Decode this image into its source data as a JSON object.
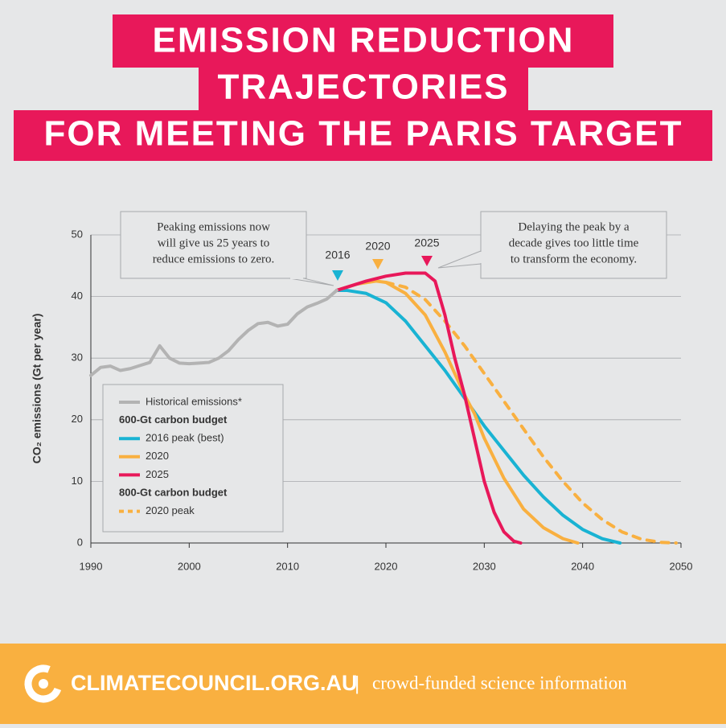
{
  "chart_data": {
    "type": "line",
    "title_lines": [
      "EMISSION REDUCTION",
      "TRAJECTORIES",
      "FOR MEETING THE PARIS TARGET"
    ],
    "ylabel": "CO₂ emissions (Gt per year)",
    "xlim": [
      1990,
      2050
    ],
    "xticks": [
      1990,
      2000,
      2010,
      2020,
      2030,
      2040,
      2050
    ],
    "ylim": [
      0,
      50
    ],
    "yticks": [
      0,
      10,
      20,
      30,
      40,
      50
    ],
    "grid": true,
    "legend_position": "lower left",
    "legend_groups": [
      "600-Gt carbon budget",
      "800-Gt carbon budget"
    ],
    "series": [
      {
        "name": "Historical emissions*",
        "color": "#b3b3b3",
        "dash": false,
        "x": [
          1990,
          1991,
          1992,
          1993,
          1994,
          1995,
          1996,
          1997,
          1998,
          1999,
          2000,
          2001,
          2002,
          2003,
          2004,
          2005,
          2006,
          2007,
          2008,
          2009,
          2010,
          2011,
          2012,
          2013,
          2014,
          2015
        ],
        "values": [
          27.2,
          28.5,
          28.7,
          28.0,
          28.3,
          28.8,
          29.3,
          32.0,
          30.0,
          29.2,
          29.1,
          29.2,
          29.3,
          30.0,
          31.2,
          33.0,
          34.5,
          35.6,
          35.8,
          35.2,
          35.5,
          37.2,
          38.3,
          38.9,
          39.6,
          41.0
        ]
      },
      {
        "name": "2016 peak (best)",
        "color": "#19b3d3",
        "dash": false,
        "x": [
          2015,
          2016,
          2018,
          2020,
          2022,
          2024,
          2026,
          2028,
          2030,
          2032,
          2034,
          2036,
          2038,
          2040,
          2042,
          2043.8
        ],
        "values": [
          41.0,
          41.0,
          40.5,
          39.0,
          36.0,
          32.0,
          28.0,
          23.5,
          19.0,
          15.0,
          11.0,
          7.5,
          4.5,
          2.2,
          0.7,
          0
        ]
      },
      {
        "name": "2020",
        "color": "#f9b040",
        "dash": false,
        "x": [
          2015,
          2017,
          2019,
          2020,
          2022,
          2024,
          2026,
          2028,
          2029,
          2030,
          2032,
          2034,
          2036,
          2038,
          2039.5
        ],
        "values": [
          41.0,
          42.0,
          42.5,
          42.3,
          40.5,
          37.0,
          31.0,
          24.0,
          21.0,
          17.0,
          10.5,
          5.5,
          2.5,
          0.7,
          0
        ]
      },
      {
        "name": "2025",
        "color": "#e8185a",
        "dash": false,
        "x": [
          2015,
          2018,
          2020,
          2022,
          2024,
          2025,
          2026,
          2027,
          2028,
          2029,
          2030,
          2031,
          2032,
          2033,
          2033.7
        ],
        "values": [
          41.0,
          42.5,
          43.3,
          43.8,
          43.8,
          42.5,
          37.0,
          30.0,
          24.0,
          17.0,
          10.0,
          5.0,
          1.8,
          0.3,
          0
        ]
      },
      {
        "name": "2020 peak",
        "color": "#f9b040",
        "dash": true,
        "x": [
          2020,
          2022,
          2024,
          2026,
          2028,
          2030,
          2032,
          2034,
          2036,
          2038,
          2040,
          2042,
          2044,
          2046,
          2048,
          2049.5
        ],
        "values": [
          42.3,
          41.5,
          39.5,
          36.0,
          32.0,
          27.5,
          23.0,
          18.5,
          14.0,
          10.0,
          6.5,
          3.8,
          1.8,
          0.6,
          0.1,
          0
        ]
      }
    ],
    "peak_markers": [
      {
        "label": "2016",
        "color": "#19b3d3"
      },
      {
        "label": "2020",
        "color": "#f9b040"
      },
      {
        "label": "2025",
        "color": "#e8185a"
      }
    ],
    "callouts": [
      [
        "Peaking emissions now",
        "will give us 25 years to",
        "reduce emissions to zero."
      ],
      [
        "Delaying the peak by a",
        "decade gives too little time",
        "to transform the economy."
      ]
    ],
    "footer": {
      "site": "CLIMATECOUNCIL.ORG.AU",
      "separator": "|",
      "tagline": "crowd-funded science information"
    }
  }
}
